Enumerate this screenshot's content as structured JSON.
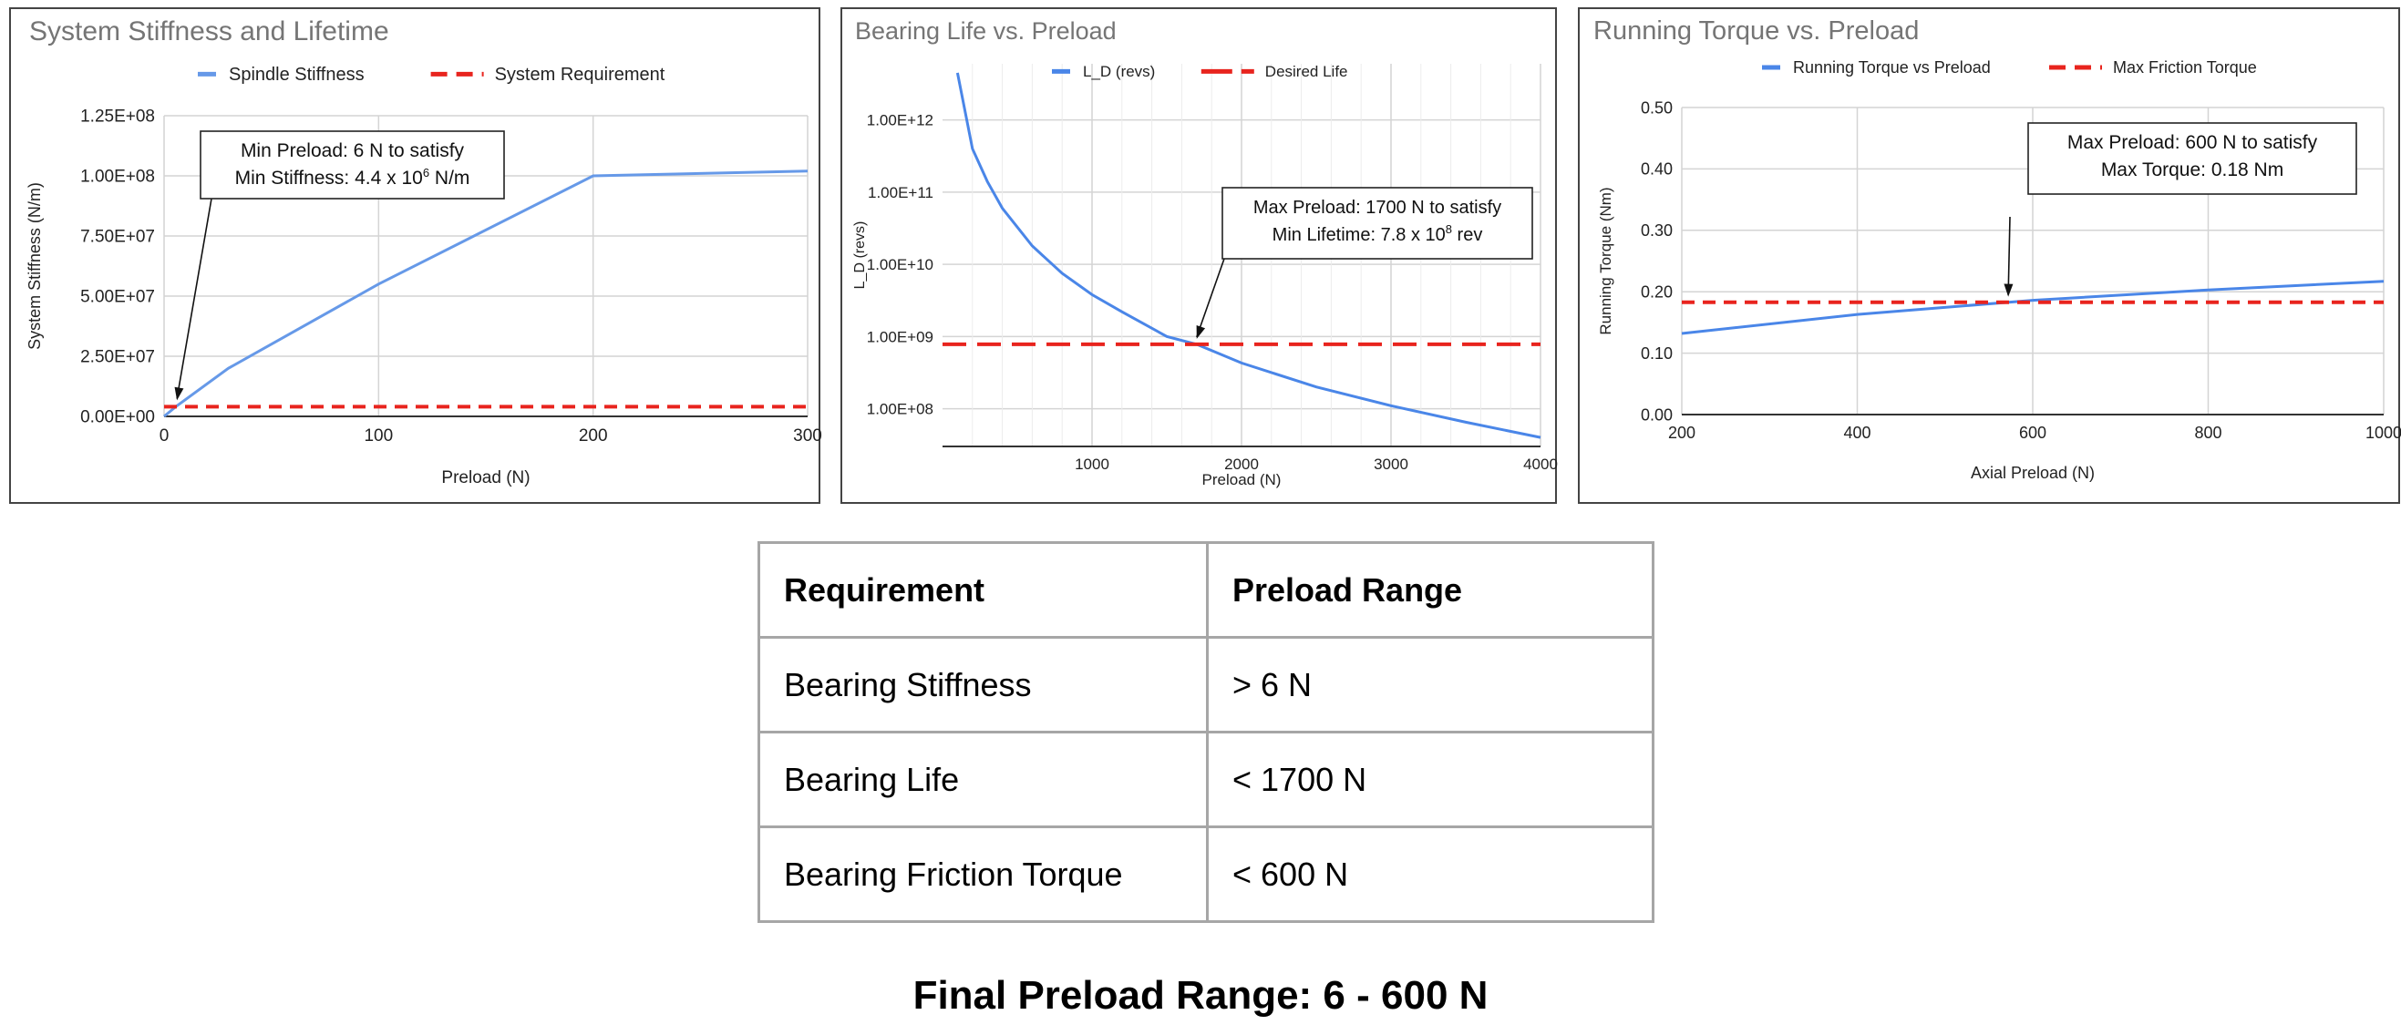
{
  "charts": [
    {
      "type": "line",
      "title": "System Stiffness and Lifetime",
      "xlabel": "Preload (N)",
      "ylabel": "System Stiffness (N/m)",
      "xlim": [
        0,
        300
      ],
      "ylim": [
        0,
        125000000
      ],
      "yscale": "linear",
      "xticks": [
        0,
        100,
        200,
        300
      ],
      "xtick_labels": [
        "0",
        "100",
        "200",
        "300"
      ],
      "yticks": [
        0,
        25000000,
        50000000,
        75000000,
        100000000,
        125000000
      ],
      "ytick_labels": [
        "0.00E+00",
        "2.50E+07",
        "5.00E+07",
        "7.50E+07",
        "1.00E+08",
        "1.25E+08"
      ],
      "grid": true,
      "legend_position": "top",
      "series": [
        {
          "name": "Spindle Stiffness",
          "style": "solid",
          "color": "#6699e8",
          "x": [
            0,
            6,
            30,
            100,
            200,
            300
          ],
          "y": [
            0,
            4400000,
            20000000,
            55000000,
            100000000,
            102000000
          ]
        },
        {
          "name": "System Requirement",
          "style": "dashed",
          "color": "#e8241e",
          "x": [
            0,
            300
          ],
          "y": [
            4000000,
            4000000
          ]
        }
      ],
      "annotation": {
        "lines": [
          "Min Preload: 6 N to satisfy",
          "Min Stiffness: 4.4 x 10",
          "6",
          " N/m"
        ],
        "point": [
          6,
          4400000
        ]
      }
    },
    {
      "type": "line",
      "title": "Bearing Life vs. Preload",
      "xlabel": "Preload (N)",
      "ylabel": "L_D (revs)",
      "xlim": [
        0,
        4000
      ],
      "ylim": [
        30000000,
        6000000000000
      ],
      "yscale": "log",
      "xticks": [
        1000,
        2000,
        3000,
        4000
      ],
      "xtick_labels": [
        "1000",
        "2000",
        "3000",
        "4000"
      ],
      "yticks": [
        100000000,
        1000000000,
        10000000000,
        100000000000,
        1000000000000
      ],
      "ytick_labels": [
        "1.00E+08",
        "1.00E+09",
        "1.00E+10",
        "1.00E+11",
        "1.00E+12"
      ],
      "grid": true,
      "legend_position": "top",
      "series": [
        {
          "name": "L_D (revs)",
          "style": "solid",
          "color": "#4a86e8",
          "x": [
            100,
            200,
            300,
            400,
            600,
            800,
            1000,
            1200,
            1500,
            1700,
            2000,
            2500,
            3000,
            3500,
            4000
          ],
          "y": [
            4500000000000,
            400000000000,
            140000000000,
            60000000000,
            18000000000,
            7500000000,
            3800000000,
            2200000000,
            1000000000,
            780000000,
            430000000,
            200000000,
            110000000,
            65000000,
            40000000
          ]
        },
        {
          "name": "Desired Life",
          "style": "dashed",
          "color": "#e8241e",
          "x": [
            0,
            4000
          ],
          "y": [
            780000000,
            780000000
          ]
        }
      ],
      "annotation": {
        "lines": [
          "Max Preload: 1700 N to satisfy",
          "Min Lifetime: 7.8 x 10",
          "8",
          " rev"
        ],
        "point": [
          1700,
          780000000
        ]
      }
    },
    {
      "type": "line",
      "title": "Running Torque vs. Preload",
      "xlabel": "Axial Preload (N)",
      "ylabel": "Running Torque (Nm)",
      "xlim": [
        200,
        1000
      ],
      "ylim": [
        0,
        0.5
      ],
      "yscale": "linear",
      "xticks": [
        200,
        400,
        600,
        800,
        1000
      ],
      "xtick_labels": [
        "200",
        "400",
        "600",
        "800",
        "1000"
      ],
      "yticks": [
        0,
        0.1,
        0.2,
        0.3,
        0.4,
        0.5
      ],
      "ytick_labels": [
        "0.00",
        "0.10",
        "0.20",
        "0.30",
        "0.40",
        "0.50"
      ],
      "grid": true,
      "legend_position": "top",
      "series": [
        {
          "name": "Running Torque vs Preload",
          "style": "solid",
          "color": "#4a86e8",
          "x": [
            200,
            400,
            600,
            800,
            1000
          ],
          "y": [
            0.132,
            0.163,
            0.186,
            0.203,
            0.217
          ]
        },
        {
          "name": "Max Friction Torque",
          "style": "dashed",
          "color": "#e8241e",
          "x": [
            200,
            1000
          ],
          "y": [
            0.183,
            0.183
          ]
        }
      ],
      "annotation": {
        "lines": [
          "Max Preload: 600 N to satisfy",
          "Max Torque: 0.18 Nm"
        ],
        "point": [
          570,
          0.183
        ]
      }
    }
  ],
  "table": {
    "headers": [
      "Requirement",
      "Preload Range"
    ],
    "rows": [
      [
        "Bearing Stiffness",
        " > 6 N"
      ],
      [
        "Bearing Life",
        "< 1700 N"
      ],
      [
        "Bearing Friction Torque",
        "< 600 N"
      ]
    ]
  },
  "final": "Final Preload Range: 6 - 600 N"
}
